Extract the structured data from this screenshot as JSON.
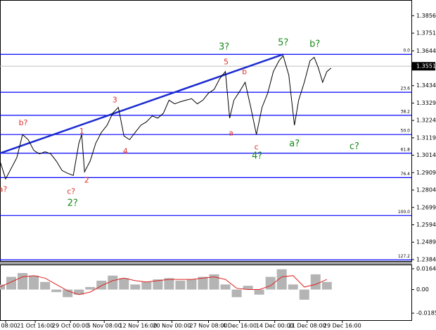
{
  "chart_data": [
    {
      "type": "line",
      "xlim": [
        0,
        146
      ],
      "xticks": [
        {
          "value": 2,
          "label": "ct 08:00"
        },
        {
          "value": 12.5,
          "label": "21 Oct 16:00"
        },
        {
          "value": 25,
          "label": "29 Oct 00:00"
        },
        {
          "value": 37,
          "label": "5 Nov 08:00"
        },
        {
          "value": 49,
          "label": "12 Nov 16:00"
        },
        {
          "value": 61,
          "label": "20 Nov 00:00"
        },
        {
          "value": 74,
          "label": "27 Nov 08:00"
        },
        {
          "value": 85,
          "label": "4 Dec 16:00"
        },
        {
          "value": 97.5,
          "label": "14 Dec 00:00"
        },
        {
          "value": 109,
          "label": "21 Dec 08:00"
        },
        {
          "value": 121.5,
          "label": "29 Dec 16:00"
        }
      ],
      "ylim": [
        1.2371,
        1.3951
      ],
      "yticks": [
        1.3856,
        1.3751,
        1.3644,
        1.3434,
        1.3329,
        1.3224,
        1.3119,
        1.3014,
        1.2909,
        1.2804,
        1.2699,
        1.2594,
        1.2489,
        1.2384
      ],
      "last_price": 1.3551,
      "series": [
        {
          "color": "#000000",
          "x": [
            0,
            2,
            4,
            6,
            8,
            10,
            12,
            14,
            16,
            18,
            20,
            22,
            24,
            26,
            28,
            29,
            30,
            32,
            34,
            36,
            38,
            40,
            42,
            44,
            46,
            48,
            50,
            52,
            54,
            56,
            58,
            60,
            62,
            64,
            66,
            68,
            70,
            72,
            74,
            76,
            78,
            80,
            81.5,
            83,
            85,
            87,
            89,
            91,
            93,
            95,
            97,
            99,
            100.5,
            102.5,
            104.5,
            106,
            108,
            110,
            111.5,
            113,
            114.5,
            116,
            117.5
          ],
          "values": [
            1.2979,
            1.2871,
            1.2935,
            1.3,
            1.3139,
            1.3108,
            1.3043,
            1.3022,
            1.3035,
            1.3022,
            1.2979,
            1.2922,
            1.2905,
            1.2892,
            1.3087,
            1.3139,
            1.2914,
            1.2979,
            1.3087,
            1.3152,
            1.3195,
            1.3268,
            1.3303,
            1.313,
            1.3108,
            1.3152,
            1.3195,
            1.3216,
            1.3251,
            1.3238,
            1.3268,
            1.3346,
            1.3324,
            1.3337,
            1.3346,
            1.3355,
            1.3324,
            1.3346,
            1.3389,
            1.3411,
            1.3476,
            1.3519,
            1.3238,
            1.3346,
            1.3398,
            1.3454,
            1.3303,
            1.3139,
            1.3303,
            1.3389,
            1.3519,
            1.3584,
            1.3614,
            1.3497,
            1.3195,
            1.3346,
            1.3454,
            1.3584,
            1.3605,
            1.354,
            1.3454,
            1.3519,
            1.354
          ]
        }
      ],
      "levels": [
        {
          "value": 1.3623,
          "label": "0.0"
        },
        {
          "value": 1.3394,
          "label": "23.6"
        },
        {
          "value": 1.3255,
          "label": "38.2"
        },
        {
          "value": 1.3139,
          "label": "50.0"
        },
        {
          "value": 1.3026,
          "label": "61.8"
        },
        {
          "value": 1.2879,
          "label": "76.4"
        },
        {
          "value": 1.265,
          "label": "100.0"
        },
        {
          "value": 1.2382,
          "label": "127.2"
        }
      ],
      "level_color": "#0000ff",
      "trendline": {
        "color": "#1a2ad0",
        "x": [
          0,
          100.5
        ],
        "values": [
          1.3026,
          1.3623
        ]
      },
      "annotations": [
        {
          "text": "3?",
          "x": 79.5,
          "y": 1.3666,
          "color": "#1a8a1a"
        },
        {
          "text": "5?",
          "x": 100.5,
          "y": 1.3692,
          "color": "#1a8a1a"
        },
        {
          "text": "b?",
          "x": 111.75,
          "y": 1.3683,
          "color": "#1a8a1a"
        },
        {
          "text": "5",
          "x": 80.25,
          "y": 1.3575,
          "color": "#e0302a"
        },
        {
          "text": "b",
          "x": 86.75,
          "y": 1.3515,
          "color": "#e0302a"
        },
        {
          "text": "a",
          "x": 82,
          "y": 1.3147,
          "color": "#e0302a"
        },
        {
          "text": "c",
          "x": 91,
          "y": 1.3061,
          "color": "#e0302a"
        },
        {
          "text": "4?",
          "x": 91.25,
          "y": 1.3009,
          "color": "#1a8a1a"
        },
        {
          "text": "a?",
          "x": 104.5,
          "y": 1.3082,
          "color": "#1a8a1a"
        },
        {
          "text": "c?",
          "x": 125.75,
          "y": 1.3065,
          "color": "#1a8a1a"
        },
        {
          "text": "3",
          "x": 40.75,
          "y": 1.3346,
          "color": "#e0302a"
        },
        {
          "text": "1",
          "x": 29,
          "y": 1.3156,
          "color": "#e0302a"
        },
        {
          "text": "4",
          "x": 44.5,
          "y": 1.3035,
          "color": "#e0302a"
        },
        {
          "text": "2",
          "x": 30.75,
          "y": 1.2862,
          "color": "#e0302a"
        },
        {
          "text": "b?",
          "x": 8.25,
          "y": 1.3208,
          "color": "#e0302a"
        },
        {
          "text": "c?",
          "x": 25.25,
          "y": 1.2793,
          "color": "#e0302a"
        },
        {
          "text": "2?",
          "x": 25.75,
          "y": 1.2724,
          "color": "#1a8a1a"
        },
        {
          "text": "a?",
          "x": 1,
          "y": 1.2806,
          "color": "#e0302a"
        }
      ]
    },
    {
      "type": "bar",
      "xlim": [
        0,
        146
      ],
      "x": [
        0,
        4,
        8,
        12,
        16,
        20,
        24,
        28,
        32,
        36,
        40,
        44,
        48,
        52,
        56,
        60,
        64,
        68,
        72,
        76,
        80,
        84,
        88,
        92,
        96,
        100,
        104,
        108,
        112,
        116
      ],
      "values": [
        0.004,
        0.01,
        0.013,
        0.011,
        0.006,
        -0.002,
        -0.006,
        -0.004,
        0.002,
        0.007,
        0.011,
        0.009,
        0.004,
        0.006,
        0.008,
        0.009,
        0.007,
        0.008,
        0.01,
        0.012,
        0.004,
        -0.006,
        0.003,
        -0.004,
        0.01,
        0.016,
        0.004,
        -0.008,
        0.012,
        0.006
      ],
      "color": "#b4b4b4",
      "signal": {
        "color": "#e02020",
        "values": [
          0.002,
          0.006,
          0.01,
          0.011,
          0.009,
          0.004,
          -0.001,
          -0.004,
          -0.002,
          0.003,
          0.007,
          0.009,
          0.007,
          0.006,
          0.007,
          0.008,
          0.008,
          0.008,
          0.009,
          0.01,
          0.008,
          0.001,
          0.0,
          0.0,
          0.003,
          0.01,
          0.011,
          0.002,
          0.004,
          0.008
        ]
      },
      "ylim": [
        -0.0241,
        0.0197
      ],
      "yticks": [
        0.0164,
        {
          "value": 0,
          "label": "0.00"
        },
        -0.01859
      ]
    }
  ]
}
